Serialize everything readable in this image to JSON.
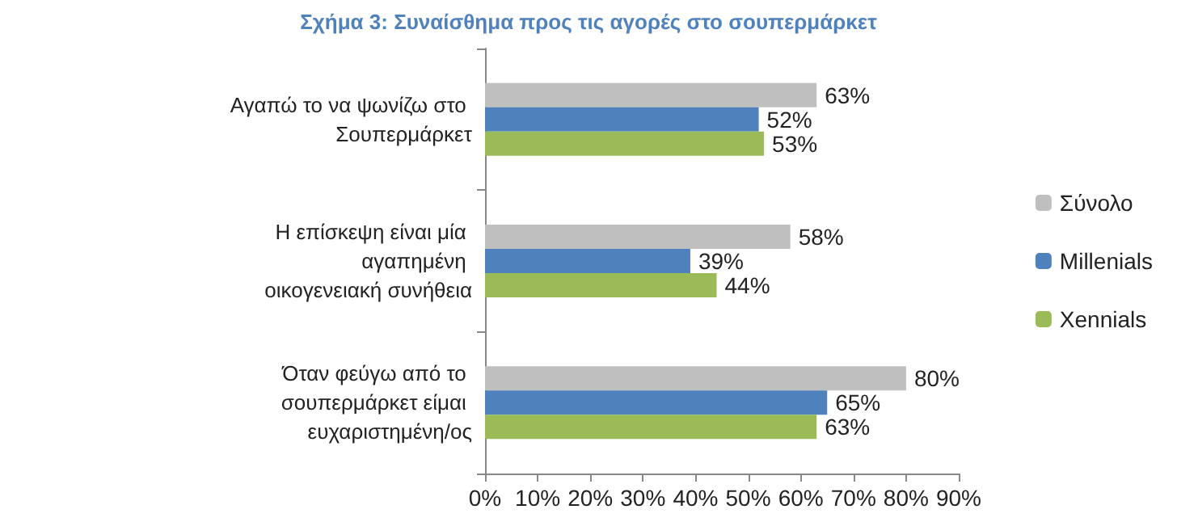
{
  "chart_data": {
    "type": "bar",
    "orientation": "horizontal",
    "title": "Σχήμα 3: Συναίσθημα προς τις αγορές στο σουπερμάρκετ",
    "categories": [
      "Αγαπώ το να ψωνίζω στο Σουπερμάρκετ",
      "Η επίσκεψη είναι μία αγαπημένη οικογενειακή συνήθεια",
      "Όταν φεύγω από το σουπερμάρκετ είμαι ευχαριστημένη/ος"
    ],
    "series": [
      {
        "name": "Σύνολο",
        "color": "#bfbfbf",
        "values": [
          63,
          58,
          80
        ],
        "value_labels": [
          "63%",
          "58%",
          "80%"
        ]
      },
      {
        "name": "Millenials",
        "color": "#4f81bd",
        "values": [
          52,
          39,
          65
        ],
        "value_labels": [
          "52%",
          "39%",
          "65%"
        ]
      },
      {
        "name": "Xennials",
        "color": "#9bbb59",
        "values": [
          53,
          44,
          63
        ],
        "value_labels": [
          "53%",
          "44%",
          "63%"
        ]
      }
    ],
    "xlim": [
      0,
      90
    ],
    "xticks": [
      {
        "value": 0,
        "label": "0%"
      },
      {
        "value": 10,
        "label": "10%"
      },
      {
        "value": 20,
        "label": "20%"
      },
      {
        "value": 30,
        "label": "30%"
      },
      {
        "value": 40,
        "label": "40%"
      },
      {
        "value": 50,
        "label": "50%"
      },
      {
        "value": 60,
        "label": "60%"
      },
      {
        "value": 70,
        "label": "70%"
      },
      {
        "value": 80,
        "label": "80%"
      },
      {
        "value": 90,
        "label": "90%"
      }
    ],
    "grid": false,
    "legend": "right"
  }
}
